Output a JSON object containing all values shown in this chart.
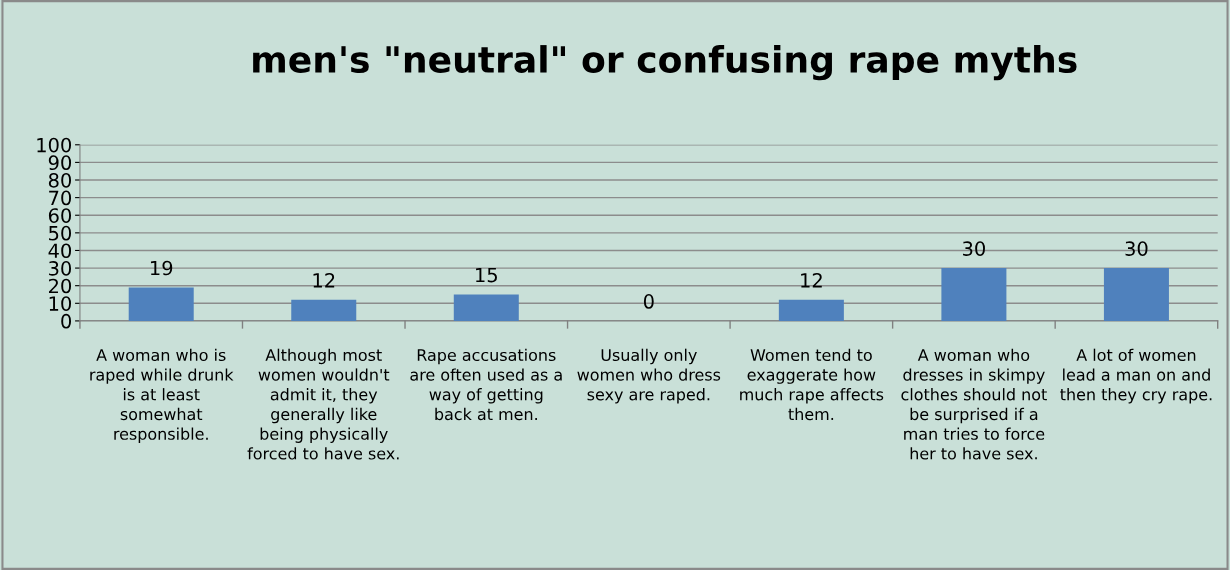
{
  "chart_data": {
    "type": "bar",
    "title": "men's \"neutral\" or confusing rape myths",
    "categories": [
      "A woman who is\nraped while drunk\nis at least\nsomewhat\nresponsible.",
      "Although most\nwomen wouldn't\nadmit it, they\ngenerally like\nbeing physically\nforced to have sex.",
      "Rape accusations\nare often used as a\nway of getting\nback at men.",
      "Usually only\nwomen who dress\nsexy are raped.",
      "Women tend to\nexaggerate how\nmuch rape affects\nthem.",
      "A woman who\ndresses in skimpy\nclothes should not\nbe surprised if a\nman tries to force\nher to have sex.",
      "A lot of women\nlead a man on and\nthen they cry rape."
    ],
    "values": [
      19,
      12,
      15,
      0,
      12,
      30,
      30
    ],
    "color": "#4f81bd",
    "ylim": [
      0,
      100
    ],
    "yticks": [
      0,
      10,
      20,
      30,
      40,
      50,
      60,
      70,
      80,
      90,
      100
    ],
    "grid": "y",
    "data_labels": true,
    "legend": false
  }
}
